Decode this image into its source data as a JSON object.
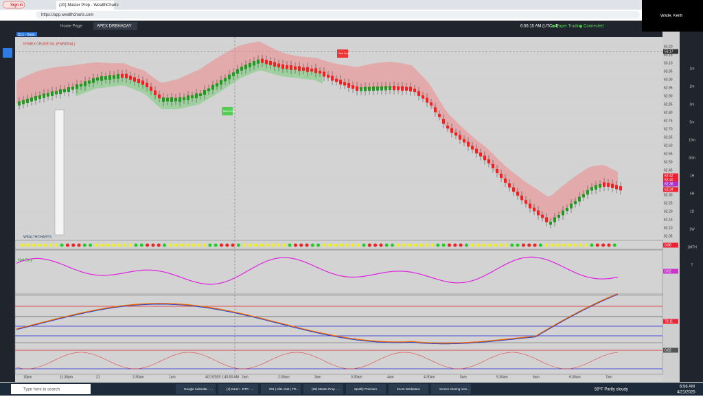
{
  "browser": {
    "sign_in": "Sign in",
    "tab": "(20) Master Prop - WealthCharts",
    "url": "https://app.wealthcharts.com"
  },
  "user": "Wade, Keith",
  "app": {
    "tabs": [
      "Home Page",
      "APEX DRBHADAY"
    ],
    "time": "6:56:15 AM (UTC -4)",
    "mode": "Paper Trading",
    "status": "Connected"
  },
  "chart": {
    "symbol": "CL1 - 5min",
    "description": "NYMEX CRUDE OIL (FWRDEAL)",
    "sell_zone": "Sell Zone",
    "buy_zone": "Buy Zone",
    "logo": "WEALTHCHARTS",
    "indicator": "Net Buy",
    "price_ticks": [
      "63.20",
      "63.15",
      "63.10",
      "63.05",
      "63.00",
      "62.95",
      "62.90",
      "62.85",
      "62.80",
      "62.75",
      "62.70",
      "62.65",
      "62.60",
      "62.55",
      "62.50",
      "62.45",
      "62.40",
      "62.35",
      "62.30",
      "62.25",
      "62.20",
      "62.15",
      "62.10",
      "62.05"
    ],
    "last_price": "63.17",
    "current_price": "62.34",
    "level_a": "62.42",
    "level_b": "62.40",
    "level_c": "62.38",
    "dots_value": "0.88",
    "osc_value": "0.02",
    "osc2_value": "78.11",
    "osc3_value": "0.82",
    "time_labels": [
      "10pm",
      "11:30pm",
      "21",
      "2:30am",
      "1am",
      "4/21/2025 1:40:00 AM",
      "2am",
      "2:30am",
      "3am",
      "3:30am",
      "4am",
      "4:30am",
      "5am",
      "5:30am",
      "6am",
      "6:30am",
      "7am"
    ]
  },
  "timeframes": [
    "1m",
    "2m",
    "3m",
    "5m",
    "10m",
    "30m",
    "1H",
    "4H",
    "1D",
    "1W",
    "1MTH",
    "T"
  ],
  "taskbar": {
    "search": "Type here to search",
    "items": [
      "Google Calendar - ...",
      "(4) Karen - DTR - ...",
      "#01 | elite-chat | TR...",
      "(20) Master Prop - ...",
      "Spotify Premium",
      "Zoom Workplace",
      "Screen sharing mee..."
    ],
    "weather": "59°F  Partly cloudy",
    "time": "6:56 AM",
    "date": "4/21/2025"
  }
}
